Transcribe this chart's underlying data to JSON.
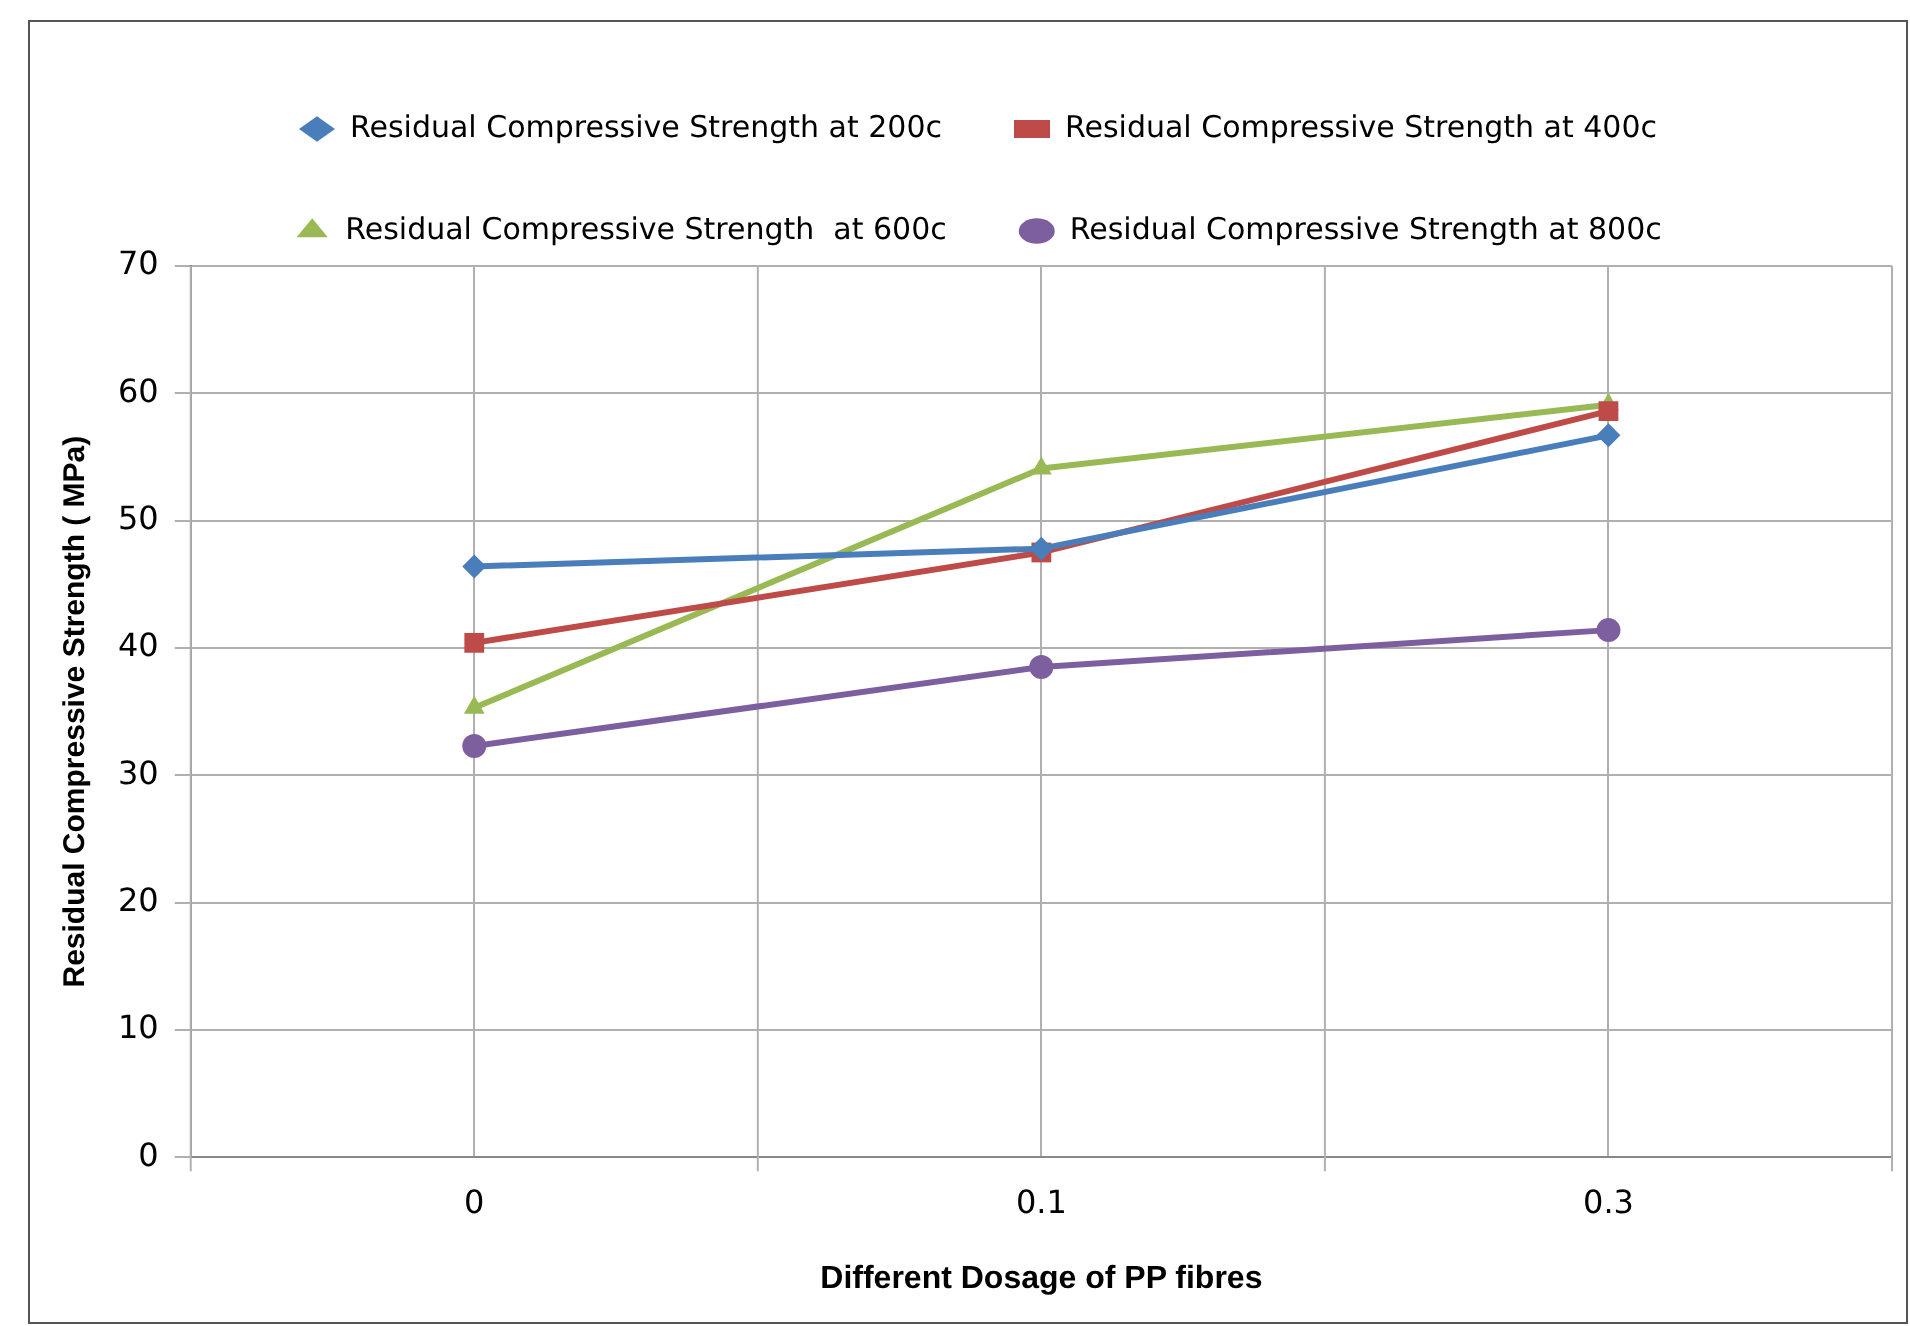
{
  "chart_data": {
    "type": "line",
    "xlabel": "Different Dosage of PP fibres",
    "ylabel": "Residual Compressive Strength ( MPa)",
    "categories": [
      "0",
      "0.1",
      "0.3"
    ],
    "series": [
      {
        "name": "Residual Compressive Strength at 200c",
        "color": "#4a7ebb",
        "marker": "diamond",
        "values": [
          46.4,
          47.8,
          56.7
        ]
      },
      {
        "name": "Residual Compressive Strength at 400c",
        "color": "#be4b48",
        "marker": "square",
        "values": [
          40.4,
          47.5,
          58.6
        ]
      },
      {
        "name": "Residual Compressive Strength  at 600c",
        "color": "#98b954",
        "marker": "triangle",
        "values": [
          35.3,
          54.1,
          59.1
        ]
      },
      {
        "name": "Residual Compressive Strength at 800c",
        "color": "#7d5fa0",
        "marker": "circle",
        "values": [
          32.3,
          38.5,
          41.4
        ]
      }
    ],
    "ylim": [
      0,
      70
    ],
    "yticks": [
      0,
      10,
      20,
      30,
      40,
      50,
      60,
      70
    ],
    "grid": true,
    "legend": "top",
    "line_style": "solid"
  }
}
